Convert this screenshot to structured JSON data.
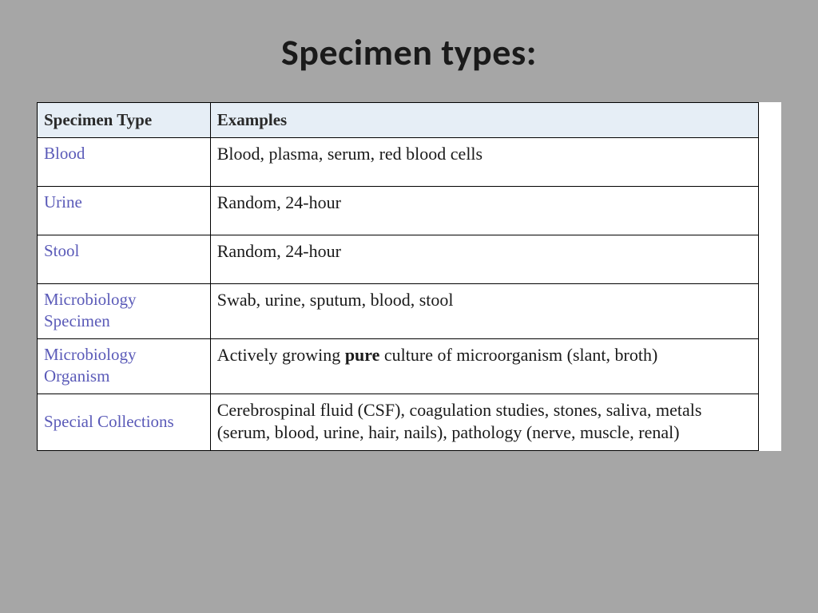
{
  "title": "Specimen types:",
  "table": {
    "header_bg": "#e6eef6",
    "border_color": "#000000",
    "type_color": "#5a5ab8",
    "text_color": "#1a1a1a",
    "columns": [
      "Specimen Type",
      "Examples"
    ],
    "col_widths_pct": [
      24,
      76
    ],
    "font_family": "Times New Roman",
    "font_size_pt": 16,
    "header_font_size_pt": 15,
    "rows": [
      {
        "type": "Blood",
        "example_html": "Blood, plasma, serum, red blood cells",
        "extra_space": true
      },
      {
        "type": "Urine",
        "example_html": "Random, 24-hour",
        "extra_space": true
      },
      {
        "type": "Stool",
        "example_html": "Random, 24-hour",
        "extra_space": true
      },
      {
        "type": "Microbiology Specimen",
        "example_html": "Swab, urine, sputum, blood, stool",
        "extra_space": true
      },
      {
        "type": "Microbiology Organism",
        "example_html": "Actively growing <strong>pure</strong> culture of microorganism (slant, broth)",
        "extra_space": false
      },
      {
        "type": "Special Collections",
        "example_html": "Cerebrospinal fluid (CSF), coagulation studies, stones, saliva, metals (serum, blood, urine, hair, nails), pathology (nerve, muscle, renal)",
        "extra_space": false,
        "type_vcenter": true
      }
    ]
  },
  "background_color": "#a6a6a6",
  "slide_size": [
    1024,
    768
  ]
}
